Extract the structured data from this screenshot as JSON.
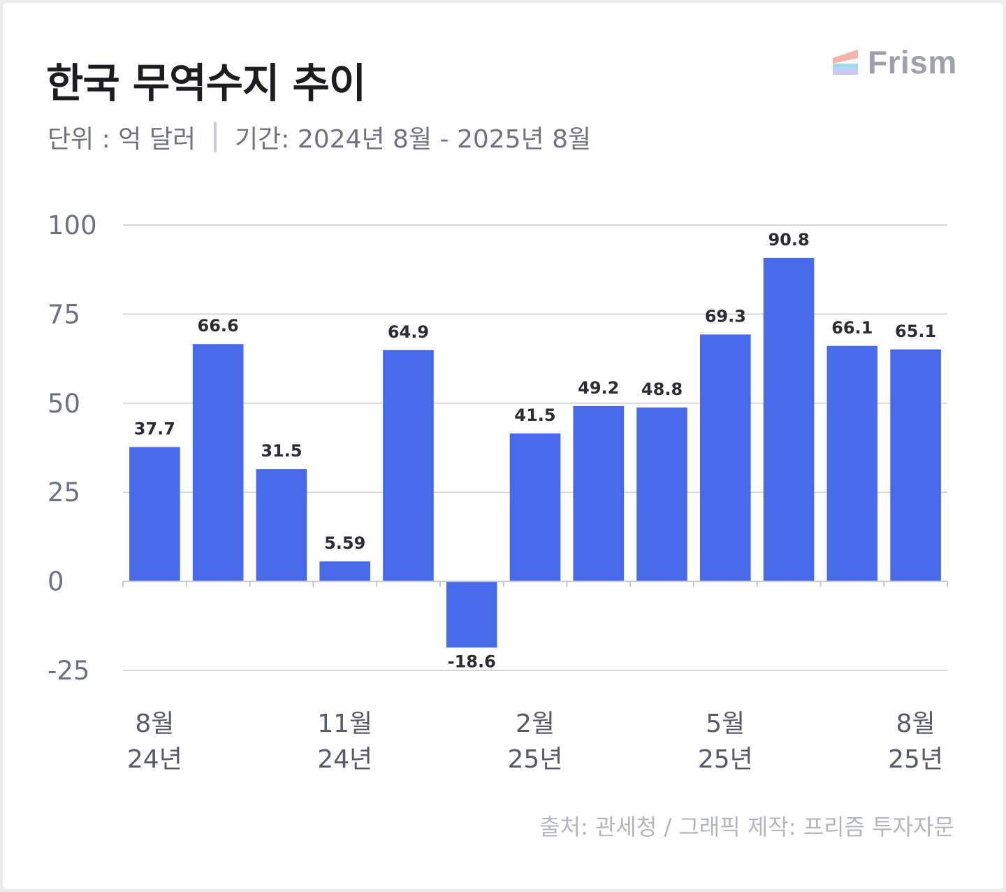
{
  "header": {
    "title": "한국 무역수지 추이",
    "unit": "단위 : 억 달러",
    "period": "기간: 2024년 8월 - 2025년 8월"
  },
  "brand": {
    "name": "Frism",
    "icon": "frism-logo-icon"
  },
  "footer": {
    "source": "출처: 관세청 / 그래픽 제작: 프리즘 투자자문"
  },
  "colors": {
    "bar": "#476aea",
    "grid": "#d6d8dd",
    "axis": "#c5c8ce"
  },
  "chart_data": {
    "type": "bar",
    "categories": [
      "24-08",
      "24-09",
      "24-10",
      "24-11",
      "24-12",
      "25-01",
      "25-02",
      "25-03",
      "25-04",
      "25-05",
      "25-06",
      "25-07",
      "25-08"
    ],
    "values": [
      37.7,
      66.6,
      31.5,
      5.59,
      64.9,
      -18.6,
      41.5,
      49.2,
      48.8,
      69.3,
      90.8,
      66.1,
      65.1
    ],
    "value_labels": [
      "37.7",
      "66.6",
      "31.5",
      "5.59",
      "64.9",
      "-18.6",
      "41.5",
      "49.2",
      "48.8",
      "69.3",
      "90.8",
      "66.1",
      "65.1"
    ],
    "ylim": [
      -25,
      100
    ],
    "yticks": [
      100,
      75,
      50,
      25,
      0,
      -25
    ],
    "ytick_labels": [
      "100",
      "75",
      "50",
      "25",
      "0",
      "-25"
    ],
    "x_labels": [
      {
        "index": 0,
        "month": "8월",
        "year": "24년"
      },
      {
        "index": 3,
        "month": "11월",
        "year": "24년"
      },
      {
        "index": 6,
        "month": "2월",
        "year": "25년"
      },
      {
        "index": 9,
        "month": "5월",
        "year": "25년"
      },
      {
        "index": 12,
        "month": "8월",
        "year": "25년"
      }
    ],
    "grid": true,
    "legend": "none"
  }
}
